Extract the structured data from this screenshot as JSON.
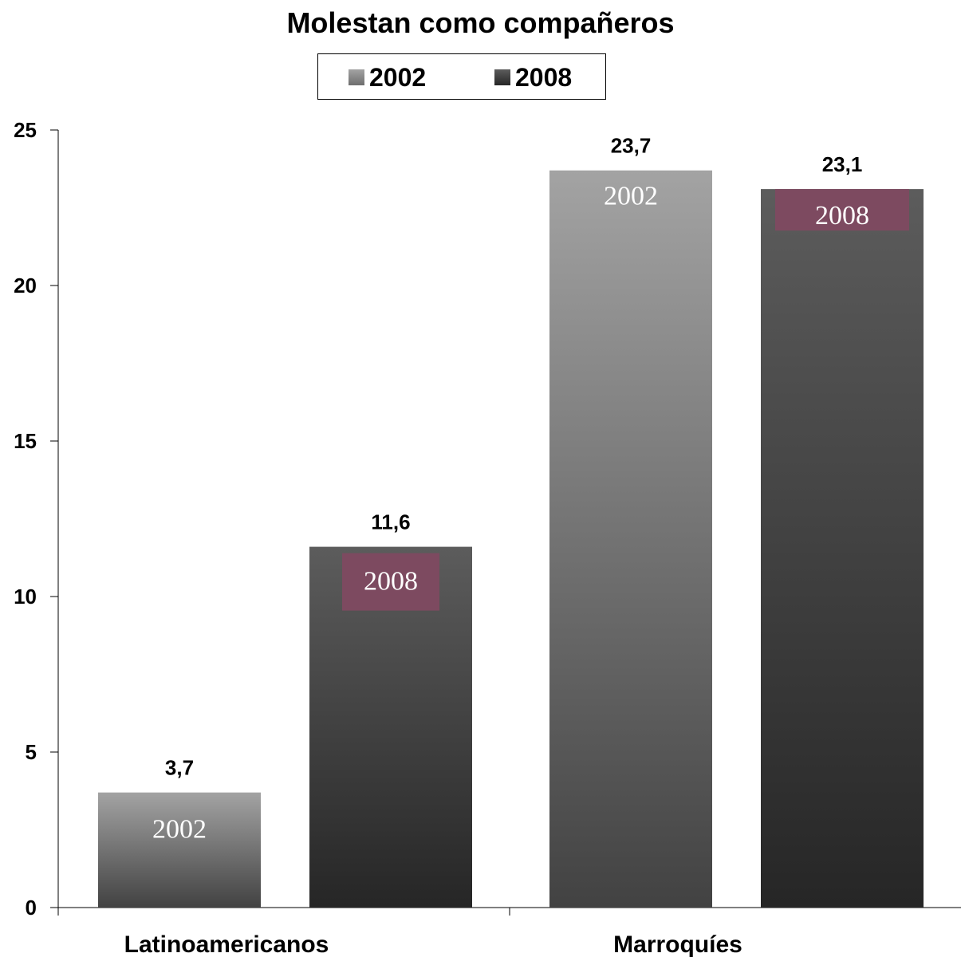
{
  "chart_data": {
    "type": "bar",
    "title": "Molestan como compañeros",
    "categories": [
      "Latinoamericanos",
      "Marroquíes"
    ],
    "series": [
      {
        "name": "2002",
        "values": [
          3.7,
          23.7
        ],
        "value_labels": [
          "3,7",
          "23,7"
        ],
        "inner_label": "2002",
        "inner_label_highlight": false
      },
      {
        "name": "2008",
        "values": [
          11.6,
          23.1
        ],
        "value_labels": [
          "11,6",
          "23,1"
        ],
        "inner_label": "2008",
        "inner_label_highlight": true
      }
    ],
    "ylim": [
      0,
      25
    ],
    "yticks": [
      0,
      5,
      10,
      15,
      20,
      25
    ],
    "xlabel": "",
    "ylabel": "",
    "grid": false,
    "legend_position": "top-center",
    "colors": {
      "series_2002_top": "#a3a3a3",
      "series_2002_bottom": "#424242",
      "series_2008_top": "#5c5c5c",
      "series_2008_bottom": "#262626",
      "label_box": "#7d4a60"
    }
  }
}
